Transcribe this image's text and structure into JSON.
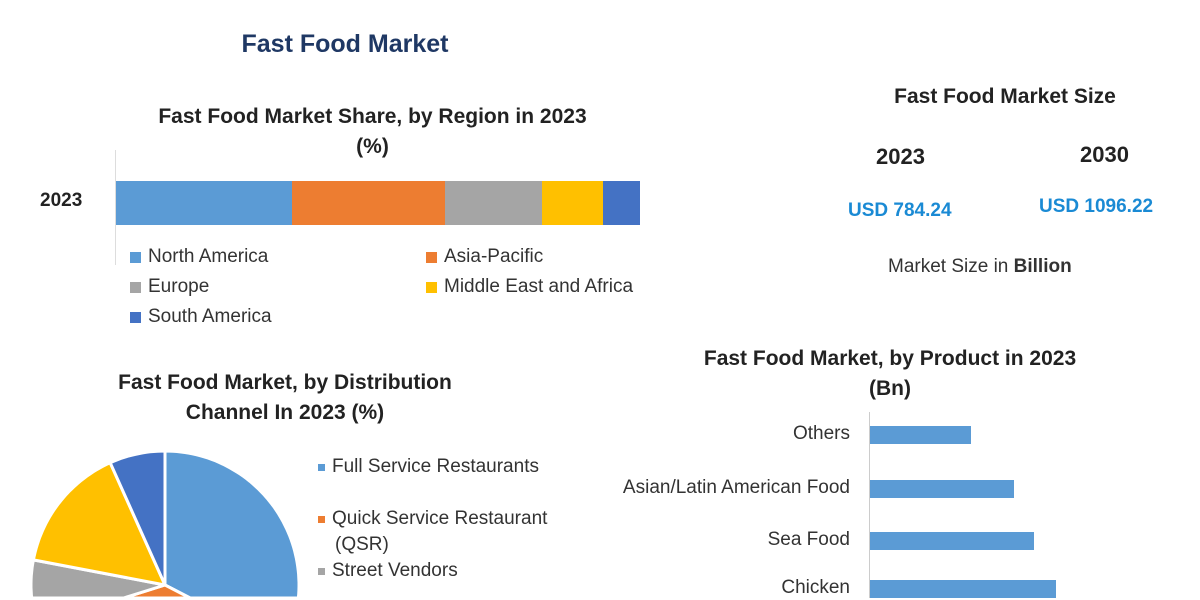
{
  "title": "Fast Food Market",
  "colors": {
    "title": "#1f3864",
    "usd": "#1a8ad4"
  },
  "market_size": {
    "title": "Fast Food Market Size",
    "years": [
      {
        "year": "2023",
        "value": "USD 784.24"
      },
      {
        "year": "2030",
        "value": "USD 1096.22"
      }
    ],
    "unit_prefix": "Market Size in ",
    "unit_bold": "Billion"
  },
  "chart_data": [
    {
      "type": "bar",
      "stacked": true,
      "orientation": "horizontal",
      "title": "Fast Food Market Share, by Region in 2023",
      "subtitle": "(%)",
      "categories": [
        "2023"
      ],
      "series": [
        {
          "name": "North America",
          "values": [
            33.6
          ],
          "color": "#5b9bd5"
        },
        {
          "name": "Asia-Pacific",
          "values": [
            29.2
          ],
          "color": "#ed7d31"
        },
        {
          "name": "Europe",
          "values": [
            18.5
          ],
          "color": "#a5a5a5"
        },
        {
          "name": "Middle East and Africa",
          "values": [
            11.6
          ],
          "color": "#ffc000"
        },
        {
          "name": "South America",
          "values": [
            7.1
          ],
          "color": "#4472c4"
        }
      ],
      "xlim": [
        0,
        100
      ],
      "legend": "bottom"
    },
    {
      "type": "pie",
      "title": "Fast Food Market, by Distribution Channel In 2023 (%)",
      "title_lines": [
        "Fast Food Market, by Distribution",
        "Channel In 2023 (%)"
      ],
      "slices": [
        {
          "name": "Full Service Restaurants",
          "value": 47,
          "color": "#5b9bd5"
        },
        {
          "name": "Quick Service Restaurant (QSR)",
          "name_lines": [
            "Quick Service Restaurant",
            "(QSR)"
          ],
          "value": 8,
          "color": "#ed7d31"
        },
        {
          "name": "Street Vendors",
          "value": 23,
          "color": "#a5a5a5"
        },
        {
          "name": "",
          "value": 15.3,
          "color": "#ffc000"
        },
        {
          "name": "",
          "value": 6.7,
          "color": "#4472c4"
        }
      ],
      "legend": "right"
    },
    {
      "type": "bar",
      "orientation": "horizontal",
      "title": "Fast Food Market, by Product in 2023",
      "subtitle": "(Bn)",
      "categories": [
        "Others",
        "Asian/Latin American Food",
        "Sea Food",
        "Chicken"
      ],
      "values": [
        101,
        144,
        164,
        186
      ],
      "value_note": "relative lengths; no axis values shown",
      "color": "#5b9bd5",
      "xlim": [
        0,
        300
      ]
    }
  ]
}
